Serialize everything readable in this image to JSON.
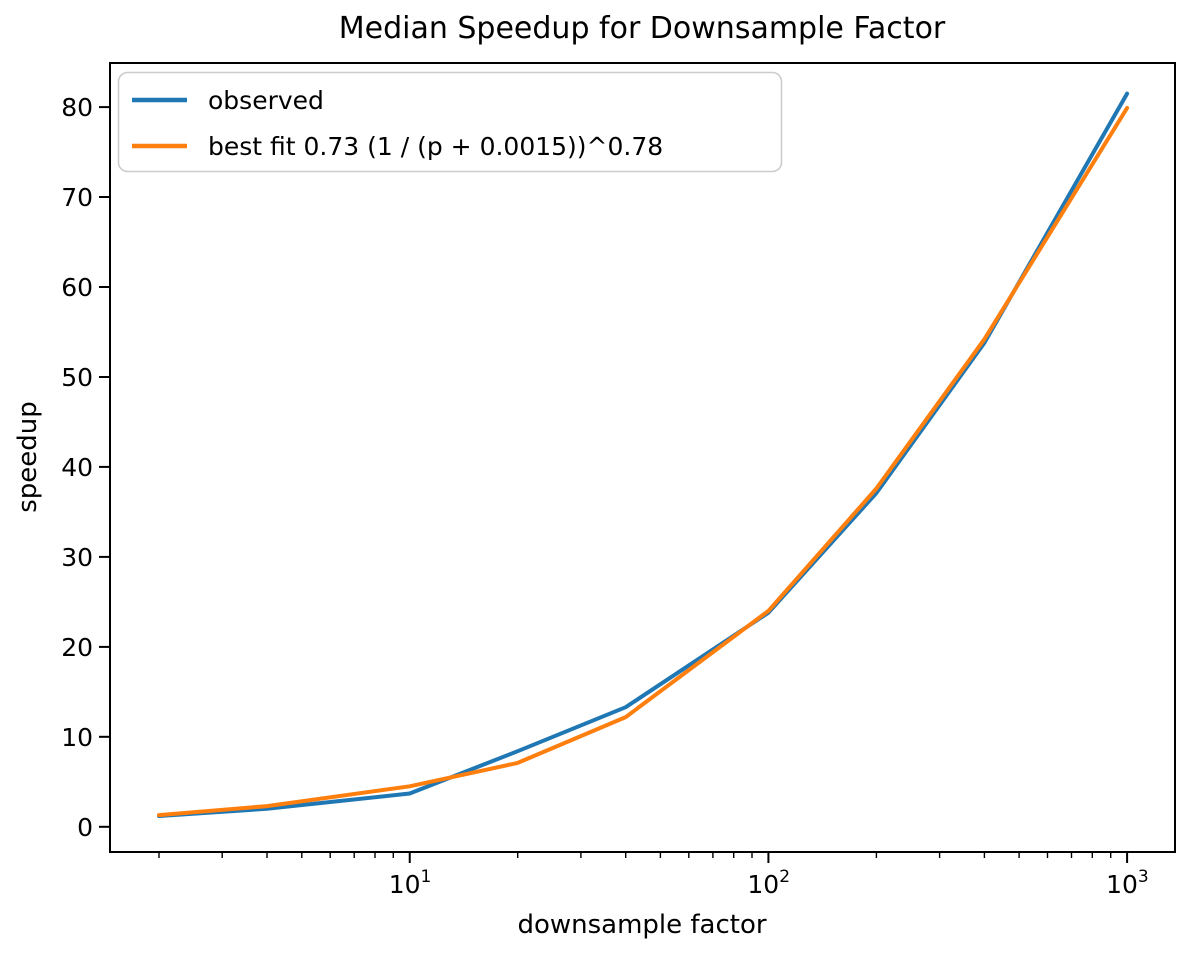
{
  "chart_data": {
    "type": "line",
    "title": "Median Speedup for Downsample Factor",
    "xlabel": "downsample factor",
    "ylabel": "speedup",
    "x_scale": "log",
    "y_scale": "linear",
    "grid": false,
    "legend_position": "upper left",
    "xlim": [
      1.46,
      1360
    ],
    "ylim": [
      -2.8,
      84.9
    ],
    "x_ticks": [
      {
        "value": 10,
        "base": "10",
        "sup": "1"
      },
      {
        "value": 100,
        "base": "10",
        "sup": "2"
      },
      {
        "value": 1000,
        "base": "10",
        "sup": "3"
      }
    ],
    "y_ticks": [
      0,
      10,
      20,
      30,
      40,
      50,
      60,
      70,
      80
    ],
    "x": [
      2,
      4,
      10,
      20,
      40,
      100,
      200,
      400,
      1000
    ],
    "series": [
      {
        "name": "observed",
        "color": "#1f77b4",
        "values": [
          1.2,
          2.0,
          3.7,
          8.4,
          13.3,
          23.8,
          37.1,
          53.8,
          81.5
        ]
      },
      {
        "name": "best fit 0.73 (1 / (p + 0.0015))^0.78",
        "color": "#ff7f0e",
        "values": [
          1.3,
          2.3,
          4.5,
          7.1,
          12.2,
          24.0,
          37.6,
          54.2,
          79.9
        ]
      }
    ],
    "colors": {
      "axis": "#000000",
      "legend_border": "#cccccc",
      "background": "#ffffff"
    }
  }
}
